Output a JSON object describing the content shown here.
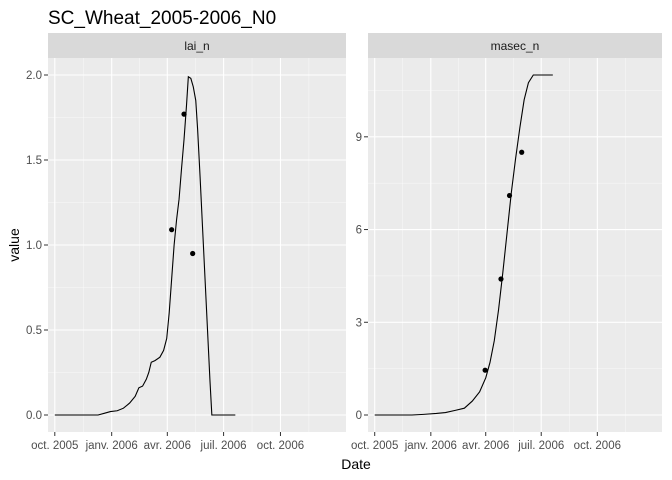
{
  "chart_data": {
    "type": "line",
    "title": "SC_Wheat_2005-2006_N0",
    "xlabel": "Date",
    "ylabel": "value",
    "colors": {
      "panel_bg": "#ebebeb",
      "strip_bg": "#d9d9d9",
      "grid_major": "#ffffff",
      "line": "#000000",
      "points": "#000000"
    },
    "x_domain": [
      "2005-09-20",
      "2007-01-15"
    ],
    "x_ticks": [
      {
        "date": "2005-10-01",
        "label": "oct. 2005"
      },
      {
        "date": "2006-01-01",
        "label": "janv. 2006"
      },
      {
        "date": "2006-04-01",
        "label": "avr. 2006"
      },
      {
        "date": "2006-07-01",
        "label": "juil. 2006"
      },
      {
        "date": "2006-10-01",
        "label": "oct. 2006"
      }
    ],
    "facets": [
      {
        "name": "lai_n",
        "ylim": [
          -0.1,
          2.1
        ],
        "y_ticks": [
          {
            "value": 0,
            "label": "0.0"
          },
          {
            "value": 0.5,
            "label": "0.5"
          },
          {
            "value": 1.0,
            "label": "1.0"
          },
          {
            "value": 1.5,
            "label": "1.5"
          },
          {
            "value": 2.0,
            "label": "2.0"
          }
        ],
        "simulated": [
          [
            "2005-10-01",
            0
          ],
          [
            "2005-12-10",
            0
          ],
          [
            "2005-12-20",
            0.01
          ],
          [
            "2005-12-30",
            0.02
          ],
          [
            "2006-01-10",
            0.025
          ],
          [
            "2006-01-20",
            0.04
          ],
          [
            "2006-01-30",
            0.07
          ],
          [
            "2006-02-08",
            0.11
          ],
          [
            "2006-02-14",
            0.16
          ],
          [
            "2006-02-20",
            0.17
          ],
          [
            "2006-02-26",
            0.21
          ],
          [
            "2006-03-02",
            0.25
          ],
          [
            "2006-03-06",
            0.31
          ],
          [
            "2006-03-12",
            0.32
          ],
          [
            "2006-03-20",
            0.34
          ],
          [
            "2006-03-26",
            0.38
          ],
          [
            "2006-03-31",
            0.45
          ],
          [
            "2006-04-04",
            0.6
          ],
          [
            "2006-04-08",
            0.8
          ],
          [
            "2006-04-12",
            1.0
          ],
          [
            "2006-04-16",
            1.15
          ],
          [
            "2006-04-20",
            1.27
          ],
          [
            "2006-04-24",
            1.45
          ],
          [
            "2006-04-28",
            1.62
          ],
          [
            "2006-05-02",
            1.82
          ],
          [
            "2006-05-05",
            1.99
          ],
          [
            "2006-05-09",
            1.98
          ],
          [
            "2006-05-13",
            1.93
          ],
          [
            "2006-05-17",
            1.85
          ],
          [
            "2006-05-20",
            1.68
          ],
          [
            "2006-05-24",
            1.4
          ],
          [
            "2006-05-28",
            1.1
          ],
          [
            "2006-06-01",
            0.8
          ],
          [
            "2006-06-05",
            0.5
          ],
          [
            "2006-06-09",
            0.2
          ],
          [
            "2006-06-12",
            0
          ],
          [
            "2006-07-20",
            0
          ]
        ],
        "observed": [
          [
            "2006-04-08",
            1.09
          ],
          [
            "2006-04-28",
            1.77
          ],
          [
            "2006-05-12",
            0.95
          ]
        ]
      },
      {
        "name": "masec_n",
        "ylim": [
          -0.55,
          11.55
        ],
        "y_ticks": [
          {
            "value": 0,
            "label": "0"
          },
          {
            "value": 3,
            "label": "3"
          },
          {
            "value": 6,
            "label": "6"
          },
          {
            "value": 9,
            "label": "9"
          }
        ],
        "simulated": [
          [
            "2005-10-01",
            0
          ],
          [
            "2005-12-01",
            0
          ],
          [
            "2005-12-20",
            0.02
          ],
          [
            "2006-01-10",
            0.05
          ],
          [
            "2006-01-25",
            0.08
          ],
          [
            "2006-02-10",
            0.15
          ],
          [
            "2006-02-25",
            0.22
          ],
          [
            "2006-03-10",
            0.45
          ],
          [
            "2006-03-22",
            0.75
          ],
          [
            "2006-04-01",
            1.2
          ],
          [
            "2006-04-08",
            1.7
          ],
          [
            "2006-04-15",
            2.4
          ],
          [
            "2006-04-22",
            3.4
          ],
          [
            "2006-04-29",
            4.6
          ],
          [
            "2006-05-06",
            5.9
          ],
          [
            "2006-05-13",
            7.2
          ],
          [
            "2006-05-20",
            8.3
          ],
          [
            "2006-05-27",
            9.3
          ],
          [
            "2006-06-03",
            10.2
          ],
          [
            "2006-06-10",
            10.75
          ],
          [
            "2006-06-18",
            11.0
          ],
          [
            "2006-07-01",
            11.0
          ],
          [
            "2006-07-20",
            11.0
          ]
        ],
        "observed": [
          [
            "2006-03-31",
            1.45
          ],
          [
            "2006-04-26",
            4.4
          ],
          [
            "2006-05-10",
            7.1
          ],
          [
            "2006-05-30",
            8.5
          ]
        ]
      }
    ]
  }
}
